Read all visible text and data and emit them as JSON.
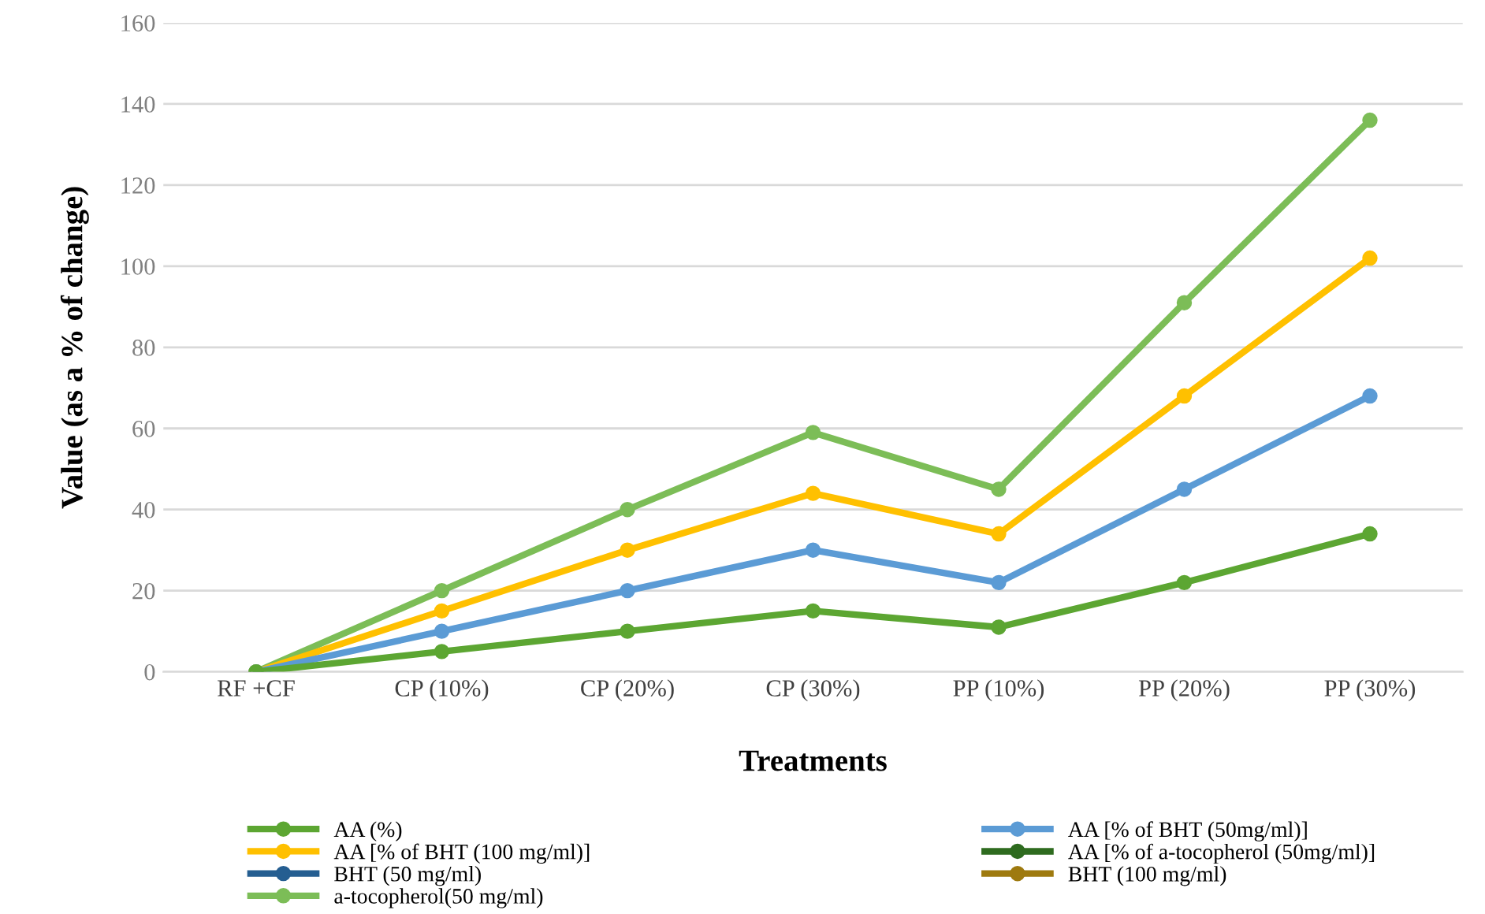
{
  "chart_data": {
    "type": "line",
    "xlabel": "Treatments",
    "ylabel": "Value (as a % of change)",
    "categories": [
      "RF +CF",
      "CP (10%)",
      "CP (20%)",
      "CP (30%)",
      "PP (10%)",
      "PP (20%)",
      "PP (30%)"
    ],
    "series": [
      {
        "name": "AA (%)",
        "color": "#5ca632",
        "values": [
          0,
          5,
          10,
          15,
          11,
          22,
          34
        ]
      },
      {
        "name": "AA [% of BHT (50mg/ml)]",
        "color": "#5b9bd5",
        "values": [
          0,
          10,
          20,
          30,
          22,
          45,
          68
        ]
      },
      {
        "name": "AA [% of BHT (100 mg/ml)]",
        "color": "#ffc000",
        "values": [
          0,
          15,
          30,
          44,
          34,
          68,
          102
        ]
      },
      {
        "name": "AA [% of a-tocopherol (50mg/ml)]",
        "color": "#2e6b1f",
        "values": [
          null,
          null,
          null,
          null,
          null,
          null,
          null
        ]
      },
      {
        "name": "BHT (50 mg/ml)",
        "color": "#255e91",
        "values": [
          null,
          null,
          null,
          null,
          null,
          null,
          null
        ]
      },
      {
        "name": "BHT (100 mg/ml)",
        "color": "#9e7a0f",
        "values": [
          null,
          null,
          null,
          null,
          null,
          null,
          null
        ]
      },
      {
        "name": "a-tocopherol(50 mg/ml)",
        "color": "#7cbd57",
        "values": [
          0,
          20,
          40,
          59,
          45,
          91,
          136
        ]
      }
    ],
    "ylim": [
      0,
      160
    ],
    "yticks": [
      0,
      20,
      40,
      60,
      80,
      100,
      120,
      140,
      160
    ],
    "grid": "y",
    "legend": "bottom",
    "marker": "circle",
    "line_style": "solid"
  }
}
